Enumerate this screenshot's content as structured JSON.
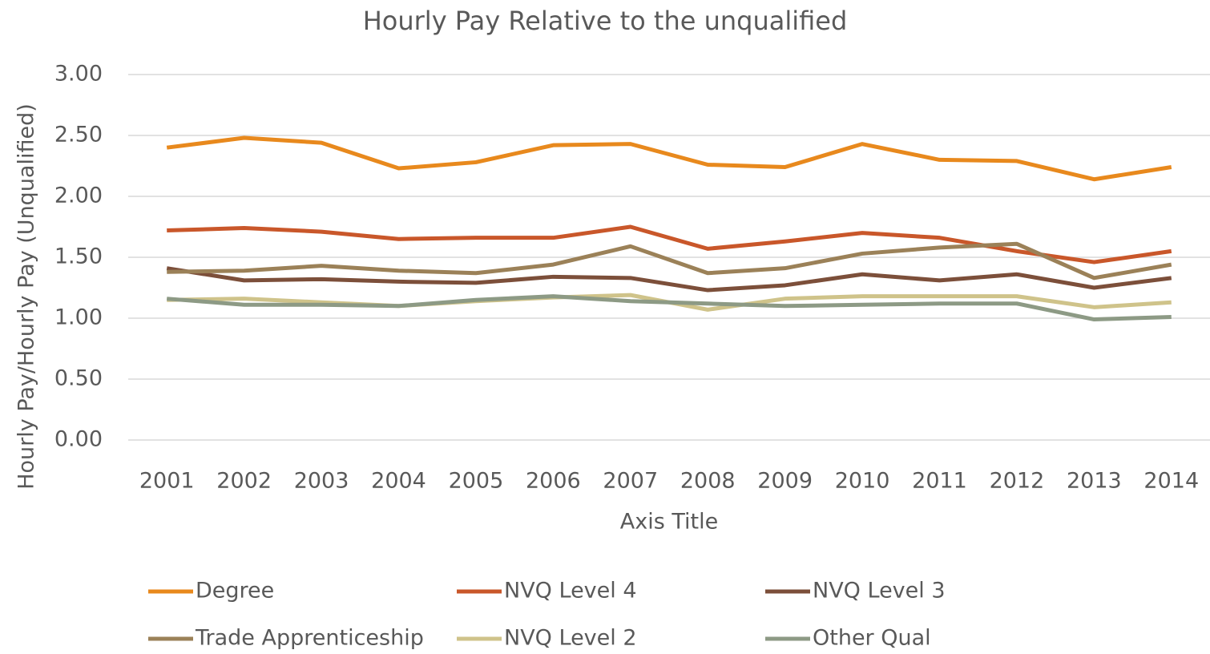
{
  "chart_data": {
    "type": "line",
    "title": "Hourly Pay Relative to the unqualified",
    "x_label": "Axis Title",
    "y_label": "Hourly Pay/Hourly Pay (Unqualified)",
    "categories": [
      "2001",
      "2002",
      "2003",
      "2004",
      "2005",
      "2006",
      "2007",
      "2008",
      "2009",
      "2010",
      "2011",
      "2012",
      "2013",
      "2014"
    ],
    "ylim": [
      0,
      3
    ],
    "yticks": [
      {
        "value": 0,
        "label": "0.00"
      },
      {
        "value": 0.5,
        "label": "0.50"
      },
      {
        "value": 1,
        "label": "1.00"
      },
      {
        "value": 1.5,
        "label": "1.50"
      },
      {
        "value": 2,
        "label": "2.00"
      },
      {
        "value": 2.5,
        "label": "2.50"
      },
      {
        "value": 3,
        "label": "3.00"
      }
    ],
    "grid": true,
    "legend": "bottom",
    "series": [
      {
        "name": "Degree",
        "color": "#e8891d",
        "values": [
          2.4,
          2.48,
          2.44,
          2.23,
          2.28,
          2.42,
          2.43,
          2.26,
          2.24,
          2.43,
          2.3,
          2.29,
          2.14,
          2.24
        ]
      },
      {
        "name": "NVQ Level 4",
        "color": "#c9572a",
        "values": [
          1.72,
          1.74,
          1.71,
          1.65,
          1.66,
          1.66,
          1.75,
          1.57,
          1.63,
          1.7,
          1.66,
          1.55,
          1.46,
          1.55
        ]
      },
      {
        "name": "NVQ Level 3",
        "color": "#7c4f3a",
        "values": [
          1.41,
          1.31,
          1.32,
          1.3,
          1.29,
          1.34,
          1.33,
          1.23,
          1.27,
          1.36,
          1.31,
          1.36,
          1.25,
          1.33
        ]
      },
      {
        "name": "Trade Apprenticeship",
        "color": "#9b8158",
        "values": [
          1.38,
          1.39,
          1.43,
          1.39,
          1.37,
          1.44,
          1.59,
          1.37,
          1.41,
          1.53,
          1.58,
          1.61,
          1.33,
          1.44
        ]
      },
      {
        "name": "NVQ Level 2",
        "color": "#cfc38a",
        "values": [
          1.15,
          1.16,
          1.13,
          1.1,
          1.14,
          1.17,
          1.19,
          1.07,
          1.16,
          1.18,
          1.18,
          1.18,
          1.09,
          1.13
        ]
      },
      {
        "name": "Other Qual",
        "color": "#8d9a85",
        "values": [
          1.16,
          1.11,
          1.11,
          1.1,
          1.15,
          1.18,
          1.14,
          1.12,
          1.1,
          1.11,
          1.12,
          1.12,
          0.99,
          1.01
        ]
      }
    ]
  }
}
